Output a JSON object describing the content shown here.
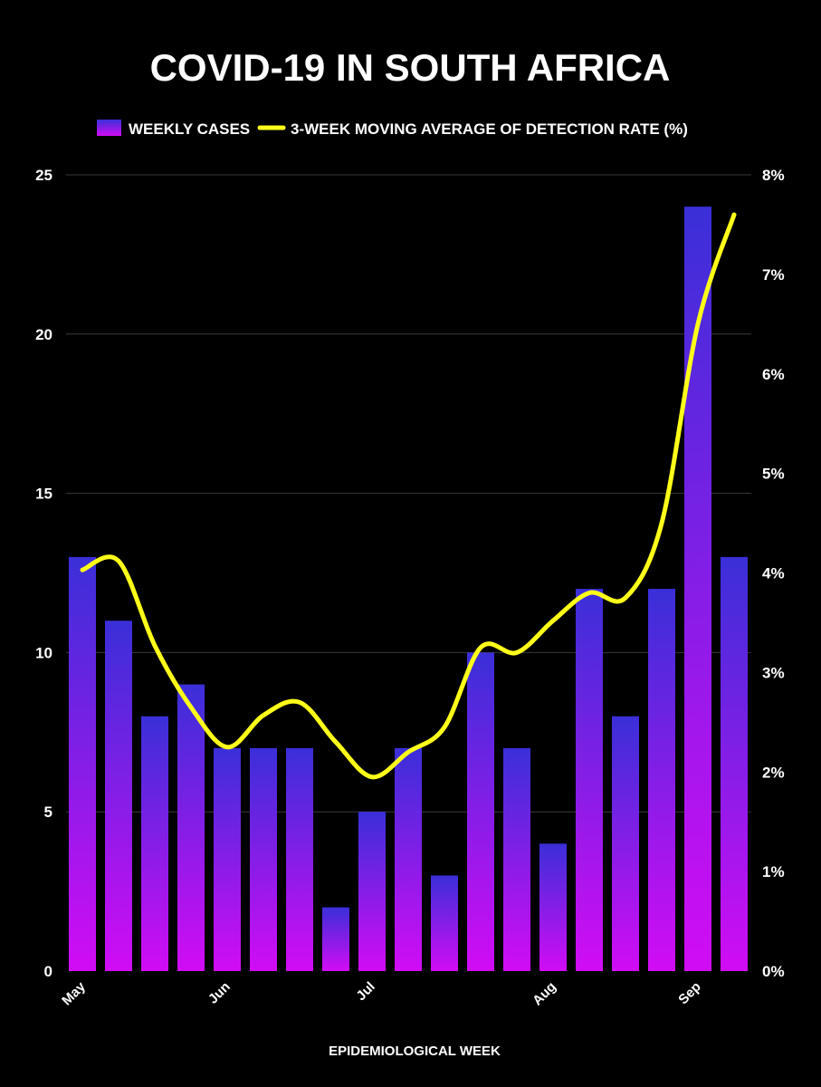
{
  "chart_data": {
    "type": "bar",
    "title": "COVID-19 IN SOUTH AFRICA",
    "xlabel": "EPIDEMIOLOGICAL WEEK",
    "ylabel": "",
    "ylim": [
      0,
      25
    ],
    "yticks": [
      "0",
      "5",
      "10",
      "15",
      "20",
      "25"
    ],
    "y2lim": [
      0,
      8
    ],
    "y2ticks": [
      "0%",
      "1%",
      "2%",
      "3%",
      "4%",
      "5%",
      "6%",
      "7%",
      "8%"
    ],
    "grid": true,
    "legend_position": "top-center",
    "month_labels": [
      {
        "label": "May",
        "week_index": 0
      },
      {
        "label": "Jun",
        "week_index": 4
      },
      {
        "label": "Jul",
        "week_index": 8
      },
      {
        "label": "Aug",
        "week_index": 13
      },
      {
        "label": "Sep",
        "week_index": 17
      }
    ],
    "series": [
      {
        "name": "WEEKLY CASES",
        "type": "bar",
        "axis": "left",
        "values": [
          13,
          11,
          8,
          9,
          7,
          7,
          7,
          2,
          5,
          7,
          3,
          10,
          7,
          4,
          12,
          8,
          12,
          24,
          13
        ]
      },
      {
        "name": "3-WEEK MOVING AVERAGE OF DETECTION RATE (%)",
        "type": "line",
        "axis": "right",
        "values": [
          4.03,
          4.12,
          3.27,
          2.65,
          2.25,
          2.57,
          2.7,
          2.3,
          1.95,
          2.2,
          2.45,
          3.25,
          3.2,
          3.52,
          3.8,
          3.75,
          4.5,
          6.5,
          7.6
        ]
      }
    ],
    "colors": {
      "bar_top": "#3a2fd8",
      "bar_bottom": "#d10cf5",
      "line": "#ffff1a",
      "background": "#000000",
      "grid": "#3a3a3a"
    }
  }
}
